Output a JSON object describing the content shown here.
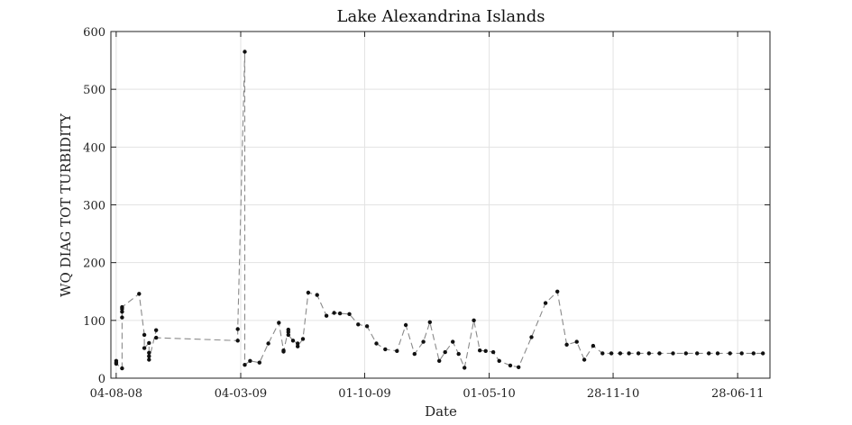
{
  "chart_data": {
    "type": "line",
    "title": "Lake Alexandrina Islands",
    "xlabel": "Date",
    "ylabel": "WQ DIAG TOT TURBIDITY",
    "xlim": [
      "2008-07-26",
      "2011-08-22"
    ],
    "ylim": [
      0,
      600
    ],
    "x_ticks": [
      "2008-08-04",
      "2009-03-04",
      "2009-10-01",
      "2010-05-01",
      "2010-11-28",
      "2011-06-28"
    ],
    "x_tick_labels": [
      "04-08-08",
      "04-03-09",
      "01-10-09",
      "01-05-10",
      "28-11-10",
      "28-06-11"
    ],
    "y_ticks": [
      0,
      100,
      200,
      300,
      400,
      500,
      600
    ],
    "y_tick_labels": [
      "0",
      "100",
      "200",
      "300",
      "400",
      "500",
      "600"
    ],
    "grid": true,
    "line_style": "dashed",
    "colors": {
      "line": "#8a8a8a",
      "marker": "#111111",
      "grid": "#e3e3e3",
      "axes": "#222222"
    },
    "series": [
      {
        "x": [
          "2008-08-04",
          "2008-08-04",
          "2008-08-04",
          "2008-08-14",
          "2008-08-14",
          "2008-08-14",
          "2008-08-14",
          "2008-08-14",
          "2008-09-12",
          "2008-09-21",
          "2008-09-21",
          "2008-09-29",
          "2008-09-29",
          "2008-09-29",
          "2008-09-29",
          "2008-10-11",
          "2008-10-11",
          "2009-02-27",
          "2009-02-27",
          "2009-03-11",
          "2009-03-11",
          "2009-03-20",
          "2009-04-05",
          "2009-04-20",
          "2009-05-08",
          "2009-05-16",
          "2009-05-16",
          "2009-05-24",
          "2009-05-24",
          "2009-05-24",
          "2009-06-01",
          "2009-06-09",
          "2009-06-09",
          "2009-06-18",
          "2009-06-27",
          "2009-07-12",
          "2009-07-28",
          "2009-08-10",
          "2009-08-20",
          "2009-09-05",
          "2009-09-20",
          "2009-10-05",
          "2009-10-21",
          "2009-11-05",
          "2009-11-25",
          "2009-12-10",
          "2009-12-25",
          "2010-01-09",
          "2010-01-20",
          "2010-02-05",
          "2010-02-15",
          "2010-02-28",
          "2010-03-10",
          "2010-03-20",
          "2010-04-05",
          "2010-04-15",
          "2010-04-25",
          "2010-05-08",
          "2010-05-18",
          "2010-06-06",
          "2010-06-20",
          "2010-07-12",
          "2010-08-05",
          "2010-08-25",
          "2010-09-10",
          "2010-09-27",
          "2010-10-10",
          "2010-10-25",
          "2010-11-10",
          "2010-11-25",
          "2010-12-10",
          "2010-12-25",
          "2011-01-10",
          "2011-01-28",
          "2011-02-15",
          "2011-03-10",
          "2011-04-01",
          "2011-04-20",
          "2011-05-10",
          "2011-05-25",
          "2011-06-15",
          "2011-07-05",
          "2011-07-25",
          "2011-08-10"
        ],
        "y": [
          30,
          27,
          25,
          17,
          105,
          115,
          120,
          123,
          146,
          75,
          52,
          61,
          44,
          38,
          32,
          83,
          70,
          65,
          85,
          565,
          23,
          30,
          27,
          60,
          96,
          48,
          46,
          84,
          80,
          75,
          65,
          60,
          55,
          68,
          148,
          144,
          108,
          113,
          112,
          111,
          93,
          90,
          60,
          50,
          47,
          92,
          42,
          63,
          97,
          30,
          45,
          63,
          42,
          18,
          100,
          48,
          47,
          45,
          30,
          22,
          19,
          71,
          130,
          150,
          58,
          63,
          32,
          56,
          43,
          43,
          43,
          43,
          43,
          43,
          43,
          43,
          43,
          43,
          43,
          43,
          43,
          43,
          43,
          43
        ]
      }
    ]
  }
}
